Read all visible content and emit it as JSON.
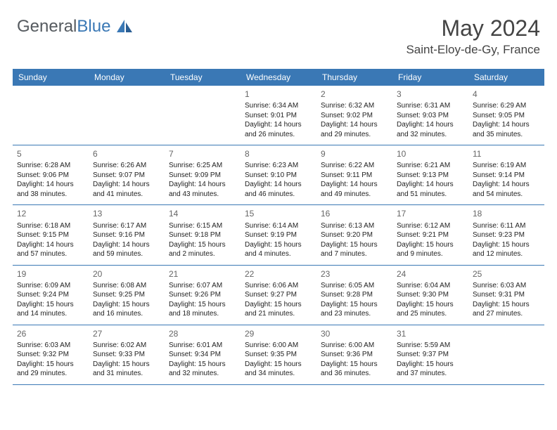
{
  "logo": {
    "part1": "General",
    "part2": "Blue"
  },
  "header": {
    "title": "May 2024",
    "location": "Saint-Eloy-de-Gy, France"
  },
  "colors": {
    "header_bg": "#3a78b5",
    "header_text": "#ffffff",
    "border": "#3a78b5",
    "logo_gray": "#555a5f",
    "logo_blue": "#3a78b5",
    "text": "#222222",
    "daynum": "#666666"
  },
  "dayNames": [
    "Sunday",
    "Monday",
    "Tuesday",
    "Wednesday",
    "Thursday",
    "Friday",
    "Saturday"
  ],
  "weeks": [
    [
      {
        "num": "",
        "lines": []
      },
      {
        "num": "",
        "lines": []
      },
      {
        "num": "",
        "lines": []
      },
      {
        "num": "1",
        "lines": [
          "Sunrise: 6:34 AM",
          "Sunset: 9:01 PM",
          "Daylight: 14 hours",
          "and 26 minutes."
        ]
      },
      {
        "num": "2",
        "lines": [
          "Sunrise: 6:32 AM",
          "Sunset: 9:02 PM",
          "Daylight: 14 hours",
          "and 29 minutes."
        ]
      },
      {
        "num": "3",
        "lines": [
          "Sunrise: 6:31 AM",
          "Sunset: 9:03 PM",
          "Daylight: 14 hours",
          "and 32 minutes."
        ]
      },
      {
        "num": "4",
        "lines": [
          "Sunrise: 6:29 AM",
          "Sunset: 9:05 PM",
          "Daylight: 14 hours",
          "and 35 minutes."
        ]
      }
    ],
    [
      {
        "num": "5",
        "lines": [
          "Sunrise: 6:28 AM",
          "Sunset: 9:06 PM",
          "Daylight: 14 hours",
          "and 38 minutes."
        ]
      },
      {
        "num": "6",
        "lines": [
          "Sunrise: 6:26 AM",
          "Sunset: 9:07 PM",
          "Daylight: 14 hours",
          "and 41 minutes."
        ]
      },
      {
        "num": "7",
        "lines": [
          "Sunrise: 6:25 AM",
          "Sunset: 9:09 PM",
          "Daylight: 14 hours",
          "and 43 minutes."
        ]
      },
      {
        "num": "8",
        "lines": [
          "Sunrise: 6:23 AM",
          "Sunset: 9:10 PM",
          "Daylight: 14 hours",
          "and 46 minutes."
        ]
      },
      {
        "num": "9",
        "lines": [
          "Sunrise: 6:22 AM",
          "Sunset: 9:11 PM",
          "Daylight: 14 hours",
          "and 49 minutes."
        ]
      },
      {
        "num": "10",
        "lines": [
          "Sunrise: 6:21 AM",
          "Sunset: 9:13 PM",
          "Daylight: 14 hours",
          "and 51 minutes."
        ]
      },
      {
        "num": "11",
        "lines": [
          "Sunrise: 6:19 AM",
          "Sunset: 9:14 PM",
          "Daylight: 14 hours",
          "and 54 minutes."
        ]
      }
    ],
    [
      {
        "num": "12",
        "lines": [
          "Sunrise: 6:18 AM",
          "Sunset: 9:15 PM",
          "Daylight: 14 hours",
          "and 57 minutes."
        ]
      },
      {
        "num": "13",
        "lines": [
          "Sunrise: 6:17 AM",
          "Sunset: 9:16 PM",
          "Daylight: 14 hours",
          "and 59 minutes."
        ]
      },
      {
        "num": "14",
        "lines": [
          "Sunrise: 6:15 AM",
          "Sunset: 9:18 PM",
          "Daylight: 15 hours",
          "and 2 minutes."
        ]
      },
      {
        "num": "15",
        "lines": [
          "Sunrise: 6:14 AM",
          "Sunset: 9:19 PM",
          "Daylight: 15 hours",
          "and 4 minutes."
        ]
      },
      {
        "num": "16",
        "lines": [
          "Sunrise: 6:13 AM",
          "Sunset: 9:20 PM",
          "Daylight: 15 hours",
          "and 7 minutes."
        ]
      },
      {
        "num": "17",
        "lines": [
          "Sunrise: 6:12 AM",
          "Sunset: 9:21 PM",
          "Daylight: 15 hours",
          "and 9 minutes."
        ]
      },
      {
        "num": "18",
        "lines": [
          "Sunrise: 6:11 AM",
          "Sunset: 9:23 PM",
          "Daylight: 15 hours",
          "and 12 minutes."
        ]
      }
    ],
    [
      {
        "num": "19",
        "lines": [
          "Sunrise: 6:09 AM",
          "Sunset: 9:24 PM",
          "Daylight: 15 hours",
          "and 14 minutes."
        ]
      },
      {
        "num": "20",
        "lines": [
          "Sunrise: 6:08 AM",
          "Sunset: 9:25 PM",
          "Daylight: 15 hours",
          "and 16 minutes."
        ]
      },
      {
        "num": "21",
        "lines": [
          "Sunrise: 6:07 AM",
          "Sunset: 9:26 PM",
          "Daylight: 15 hours",
          "and 18 minutes."
        ]
      },
      {
        "num": "22",
        "lines": [
          "Sunrise: 6:06 AM",
          "Sunset: 9:27 PM",
          "Daylight: 15 hours",
          "and 21 minutes."
        ]
      },
      {
        "num": "23",
        "lines": [
          "Sunrise: 6:05 AM",
          "Sunset: 9:28 PM",
          "Daylight: 15 hours",
          "and 23 minutes."
        ]
      },
      {
        "num": "24",
        "lines": [
          "Sunrise: 6:04 AM",
          "Sunset: 9:30 PM",
          "Daylight: 15 hours",
          "and 25 minutes."
        ]
      },
      {
        "num": "25",
        "lines": [
          "Sunrise: 6:03 AM",
          "Sunset: 9:31 PM",
          "Daylight: 15 hours",
          "and 27 minutes."
        ]
      }
    ],
    [
      {
        "num": "26",
        "lines": [
          "Sunrise: 6:03 AM",
          "Sunset: 9:32 PM",
          "Daylight: 15 hours",
          "and 29 minutes."
        ]
      },
      {
        "num": "27",
        "lines": [
          "Sunrise: 6:02 AM",
          "Sunset: 9:33 PM",
          "Daylight: 15 hours",
          "and 31 minutes."
        ]
      },
      {
        "num": "28",
        "lines": [
          "Sunrise: 6:01 AM",
          "Sunset: 9:34 PM",
          "Daylight: 15 hours",
          "and 32 minutes."
        ]
      },
      {
        "num": "29",
        "lines": [
          "Sunrise: 6:00 AM",
          "Sunset: 9:35 PM",
          "Daylight: 15 hours",
          "and 34 minutes."
        ]
      },
      {
        "num": "30",
        "lines": [
          "Sunrise: 6:00 AM",
          "Sunset: 9:36 PM",
          "Daylight: 15 hours",
          "and 36 minutes."
        ]
      },
      {
        "num": "31",
        "lines": [
          "Sunrise: 5:59 AM",
          "Sunset: 9:37 PM",
          "Daylight: 15 hours",
          "and 37 minutes."
        ]
      },
      {
        "num": "",
        "lines": []
      }
    ]
  ]
}
